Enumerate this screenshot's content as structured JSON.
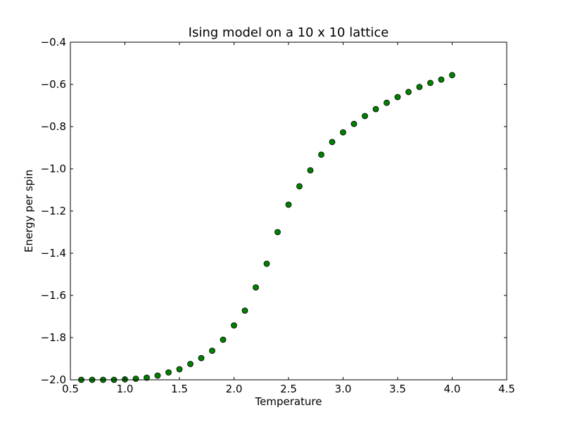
{
  "chart_data": {
    "type": "scatter",
    "title": "Ising model on a 10 x 10 lattice",
    "xlabel": "Temperature",
    "ylabel": "Energy per spin",
    "xlim": [
      0.5,
      4.5
    ],
    "ylim": [
      -2.0,
      -0.4
    ],
    "xticks": [
      0.5,
      1.0,
      1.5,
      2.0,
      2.5,
      3.0,
      3.5,
      4.0,
      4.5
    ],
    "xtick_labels": [
      "0.5",
      "1.0",
      "1.5",
      "2.0",
      "2.5",
      "3.0",
      "3.5",
      "4.0",
      "4.5"
    ],
    "yticks": [
      -2.0,
      -1.8,
      -1.6,
      -1.4,
      -1.2,
      -1.0,
      -0.8,
      -0.6,
      -0.4
    ],
    "ytick_labels": [
      "−2.0",
      "−1.8",
      "−1.6",
      "−1.4",
      "−1.2",
      "−1.0",
      "−0.8",
      "−0.6",
      "−0.4"
    ],
    "grid": false,
    "marker_color": "#008000",
    "series": [
      {
        "x": [
          0.6,
          0.7,
          0.8,
          0.9,
          1.0,
          1.1,
          1.2,
          1.3,
          1.4,
          1.5,
          1.6,
          1.7,
          1.8,
          1.9,
          2.0,
          2.1,
          2.2,
          2.3,
          2.4,
          2.5,
          2.6,
          2.7,
          2.8,
          2.9,
          3.0,
          3.1,
          3.2,
          3.3,
          3.4,
          3.5,
          3.6,
          3.7,
          3.8,
          3.9,
          4.0
        ],
        "y": [
          -2.0,
          -2.0,
          -2.0,
          -2.0,
          -1.998,
          -1.995,
          -1.99,
          -1.98,
          -1.965,
          -1.95,
          -1.925,
          -1.897,
          -1.862,
          -1.81,
          -1.742,
          -1.672,
          -1.562,
          -1.45,
          -1.3,
          -1.17,
          -1.083,
          -1.007,
          -0.933,
          -0.873,
          -0.827,
          -0.787,
          -0.75,
          -0.717,
          -0.687,
          -0.66,
          -0.636,
          -0.612,
          -0.593,
          -0.577,
          -0.556
        ]
      }
    ]
  }
}
